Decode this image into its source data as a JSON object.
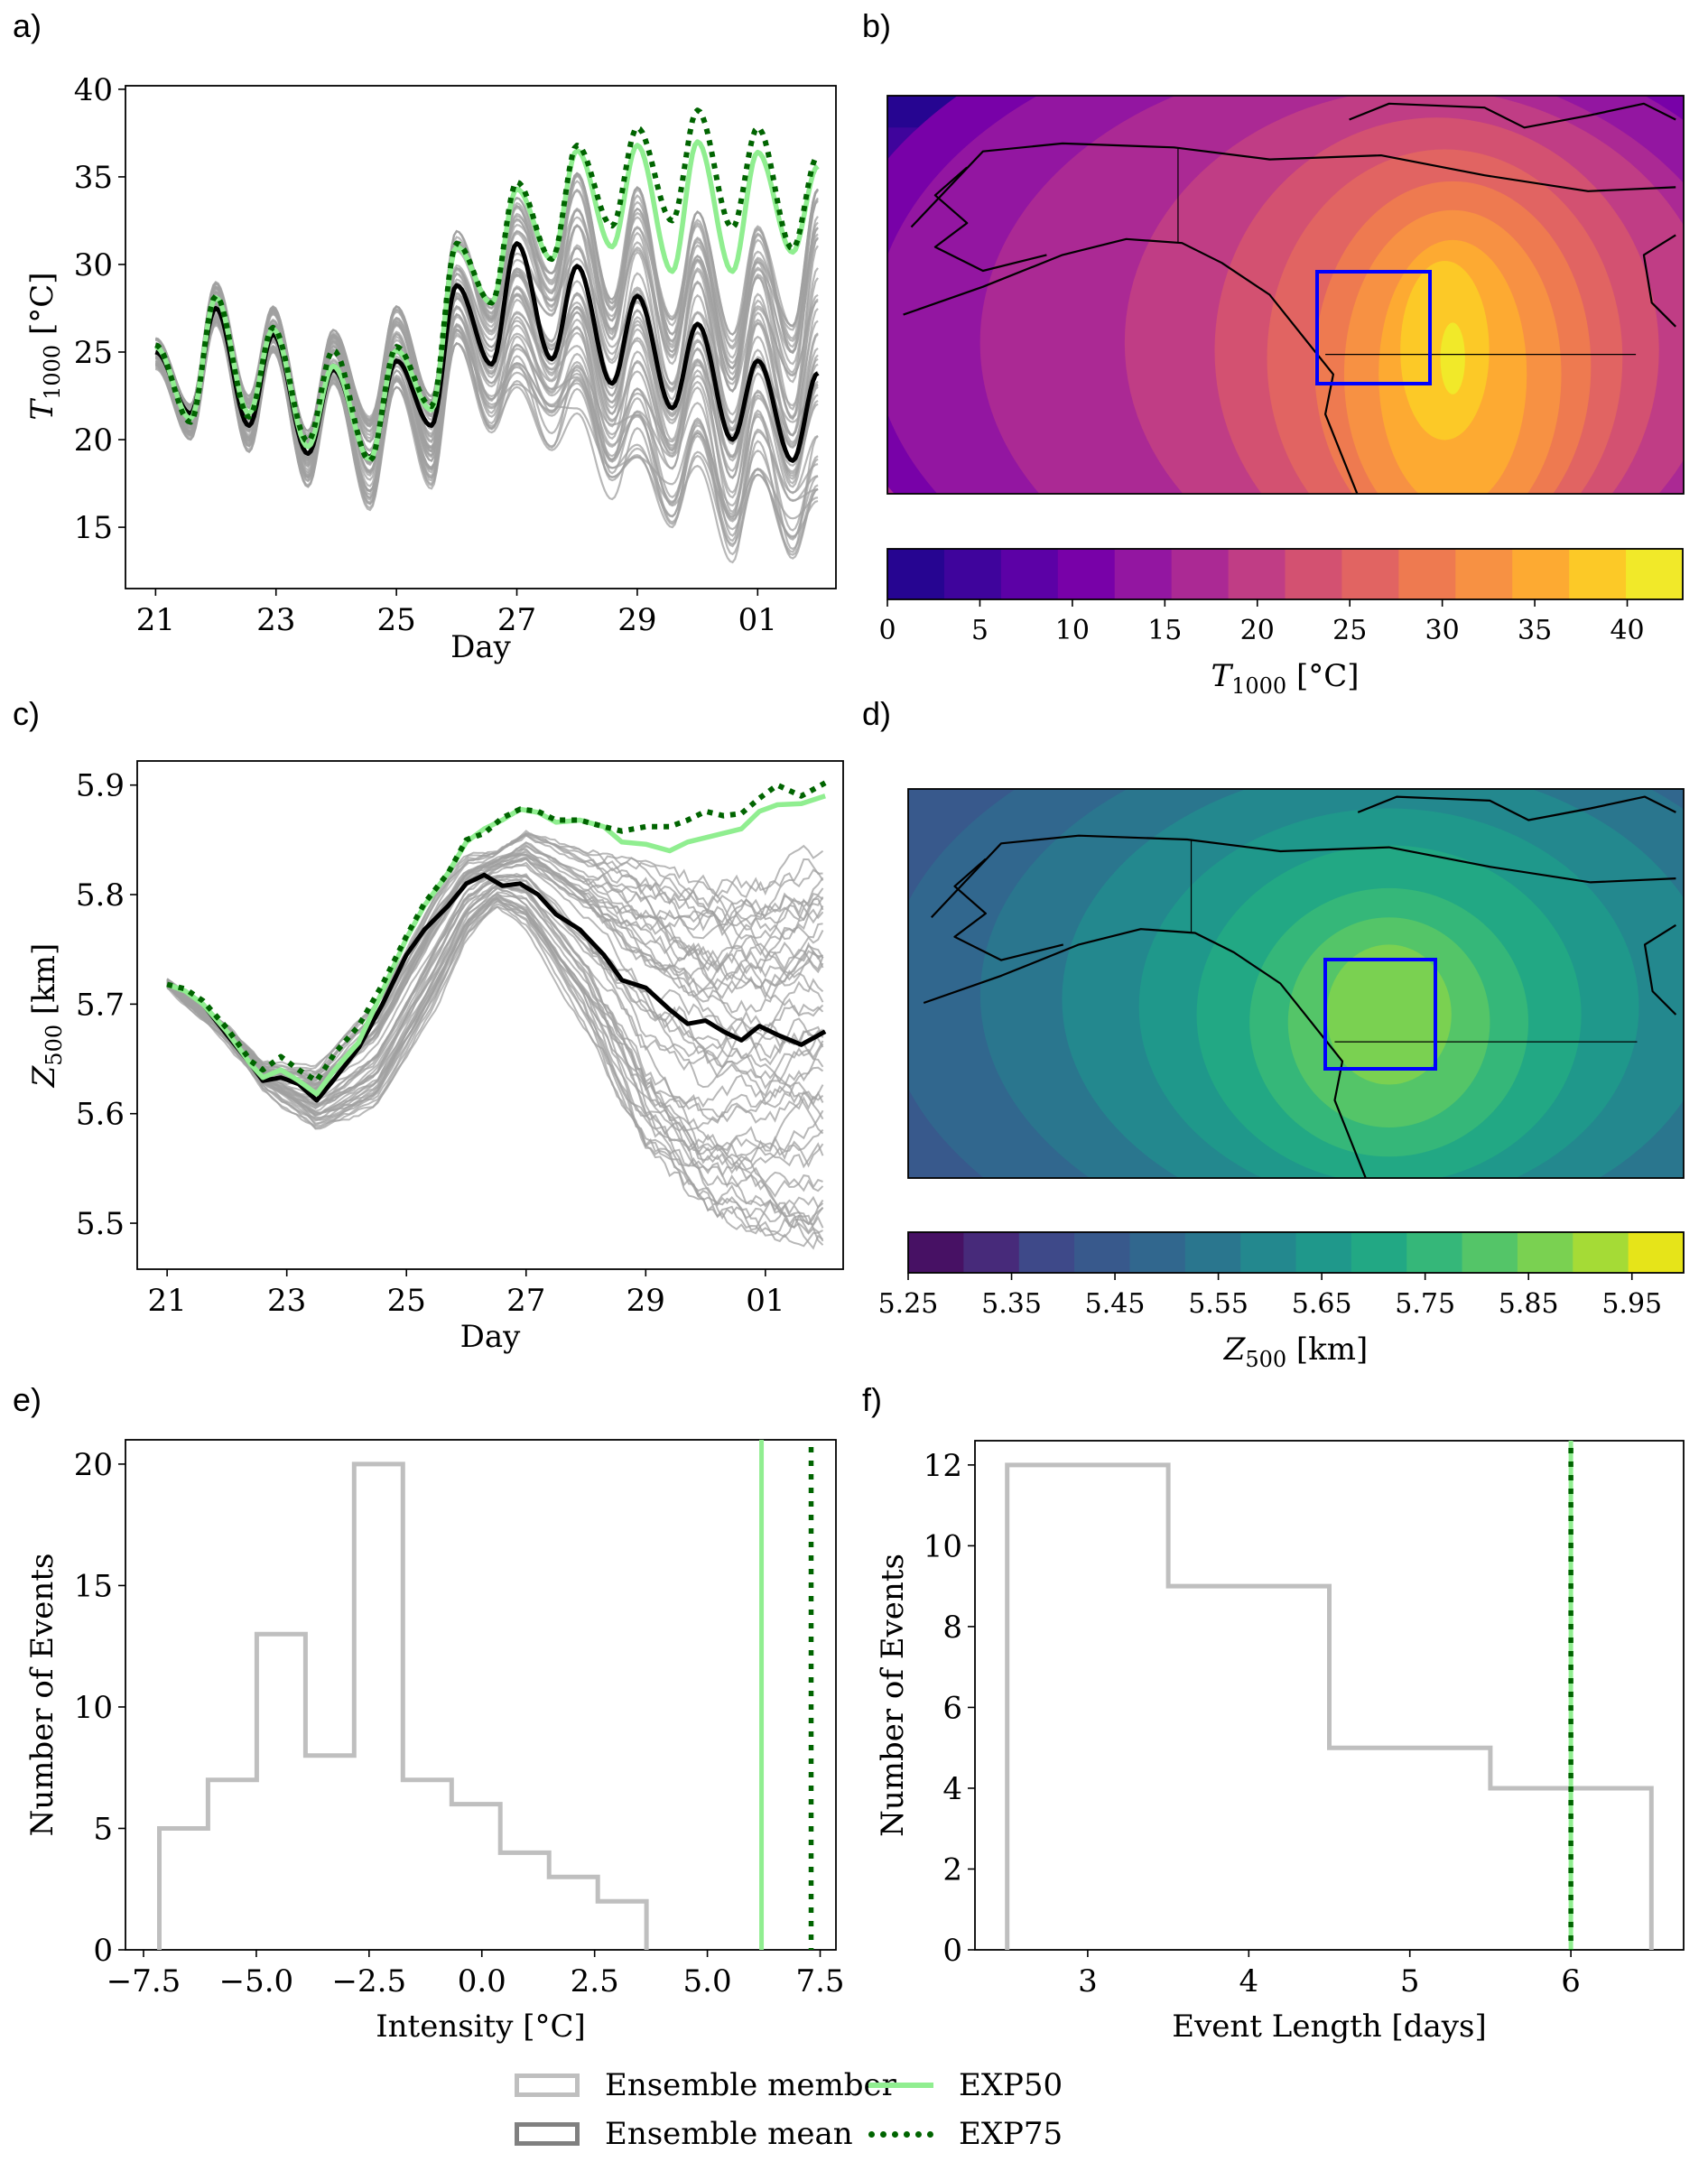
{
  "figure": {
    "panel_labels": [
      "a)",
      "b)",
      "c)",
      "d)",
      "e)",
      "f)"
    ],
    "legend": {
      "items": [
        {
          "label": "Ensemble member",
          "style": "box",
          "color": "#bfbfbf"
        },
        {
          "label": "Ensemble mean",
          "style": "box",
          "color": "#808080"
        },
        {
          "label": "EXP50",
          "style": "solid",
          "color": "#90ee90"
        },
        {
          "label": "EXP75",
          "style": "dotted",
          "color": "#006400"
        }
      ]
    },
    "colors": {
      "ensemble_member": "#a0a0a0",
      "ensemble_mean": "#000000",
      "exp50": "#90ee90",
      "exp75": "#006400",
      "hist_member": "#bfbfbf",
      "region_box": "#0000ff"
    }
  },
  "chart_data": [
    {
      "id": "a",
      "type": "line",
      "title": "",
      "xlabel": "Day",
      "ylabel": "T1000 [°C]",
      "ylabel_main": "T",
      "ylabel_sub": "1000",
      "ylabel_unit": " [°C]",
      "x_ticks": [
        21,
        23,
        25,
        27,
        29,
        31
      ],
      "x_tick_labels": [
        "21",
        "23",
        "25",
        "27",
        "29",
        "01"
      ],
      "xlim": [
        20.5,
        32.3
      ],
      "y_ticks": [
        15,
        20,
        25,
        30,
        35,
        40
      ],
      "y_tick_labels": [
        "15",
        "20",
        "25",
        "30",
        "35",
        "40"
      ],
      "ylim": [
        11.5,
        40.2
      ],
      "diurnal_peak_days": [
        21.0,
        22.0,
        22.95,
        23.95,
        25.0,
        26.0,
        27.0,
        28.0,
        29.0,
        30.0,
        31.0,
        32.0
      ],
      "series": [
        {
          "name": "Ensemble mean",
          "peaks": [
            25.0,
            27.5,
            26.0,
            24.0,
            24.5,
            28.8,
            31.2,
            29.9,
            28.2,
            26.6,
            24.5,
            23.8
          ],
          "troughs": [
            21.5,
            20.8,
            19.2,
            19.0,
            20.8,
            24.3,
            24.6,
            23.2,
            21.8,
            20.0,
            18.8
          ]
        },
        {
          "name": "EXP50",
          "peaks": [
            25.3,
            28.1,
            26.3,
            24.2,
            25.1,
            31.0,
            34.3,
            36.5,
            36.8,
            37.0,
            36.4,
            35.6
          ],
          "troughs": [
            21.2,
            21.5,
            19.6,
            18.9,
            21.7,
            27.8,
            30.3,
            31.0,
            29.6,
            29.6,
            30.7
          ]
        },
        {
          "name": "EXP75",
          "peaks": [
            25.4,
            28.2,
            26.4,
            25.1,
            25.3,
            31.2,
            34.7,
            36.8,
            37.8,
            38.8,
            37.8,
            36.2
          ],
          "troughs": [
            21.0,
            21.3,
            19.9,
            18.8,
            21.9,
            27.8,
            30.3,
            32.2,
            32.5,
            32.1,
            30.9
          ]
        }
      ],
      "ensemble_spread": {
        "n_members": 50,
        "min_peaks": [
          24.0,
          26.5,
          25.0,
          23.2,
          23.0,
          25.5,
          23.0,
          21.5,
          19.0,
          18.5,
          18.0,
          16.5
        ],
        "max_peaks": [
          25.8,
          29.0,
          27.6,
          26.3,
          27.6,
          31.9,
          33.8,
          35.2,
          34.4,
          33.0,
          32.3,
          34.3
        ],
        "min_troughs": [
          20.0,
          19.3,
          17.3,
          15.8,
          17.2,
          20.3,
          19.4,
          16.6,
          15.0,
          13.0,
          13.0
        ],
        "max_troughs": [
          22.0,
          22.5,
          20.5,
          21.3,
          22.5,
          28.0,
          29.5,
          28.0,
          27.0,
          26.0,
          26.5
        ]
      }
    },
    {
      "id": "b",
      "type": "heatmap",
      "title": "",
      "colorbar_label_main": "T",
      "colorbar_label_sub": "1000",
      "colorbar_label_unit": " [°C]",
      "colorbar_ticks": [
        0,
        5,
        10,
        15,
        20,
        25,
        30,
        35,
        40
      ],
      "colorbar_range": [
        0,
        43
      ],
      "levels": 14,
      "colormap": [
        "#260591",
        "#3f049c",
        "#5c01a6",
        "#7801a8",
        "#9316a1",
        "#ab2994",
        "#c03d85",
        "#d35171",
        "#e16462",
        "#ee7a50",
        "#f79143",
        "#fdaa32",
        "#fcc927",
        "#f1e929"
      ],
      "region_box": "blue rectangle over British Columbia / Pacific Northwest",
      "field_description": "T1000 heat anomaly maximum (~40°C) centred over southern British Columbia / Pacific Northwest, decreasing outward to ~5°C over North Pacific and ~0-3°C in Arctic"
    },
    {
      "id": "c",
      "type": "line",
      "title": "",
      "xlabel": "Day",
      "ylabel_main": "Z",
      "ylabel_sub": "500",
      "ylabel_unit": " [km]",
      "x_ticks": [
        21,
        23,
        25,
        27,
        29,
        31
      ],
      "x_tick_labels": [
        "21",
        "23",
        "25",
        "27",
        "29",
        "01"
      ],
      "xlim": [
        20.5,
        32.3
      ],
      "y_ticks": [
        5.5,
        5.6,
        5.7,
        5.8,
        5.9
      ],
      "y_tick_labels": [
        "5.5",
        "5.6",
        "5.7",
        "5.8",
        "5.9"
      ],
      "ylim": [
        5.458,
        5.922
      ],
      "series": [
        {
          "name": "Ensemble mean",
          "x": [
            21.0,
            21.3,
            21.6,
            22.0,
            22.4,
            22.6,
            22.9,
            23.2,
            23.5,
            23.8,
            24.2,
            24.6,
            25.0,
            25.3,
            25.7,
            26.0,
            26.3,
            26.6,
            26.9,
            27.2,
            27.5,
            27.9,
            28.3,
            28.6,
            29.0,
            29.4,
            29.7,
            30.0,
            30.3,
            30.6,
            30.9,
            31.2,
            31.6,
            32.0
          ],
          "y": [
            5.718,
            5.712,
            5.7,
            5.672,
            5.645,
            5.63,
            5.633,
            5.627,
            5.612,
            5.632,
            5.66,
            5.7,
            5.745,
            5.768,
            5.79,
            5.81,
            5.818,
            5.808,
            5.81,
            5.8,
            5.782,
            5.768,
            5.745,
            5.722,
            5.715,
            5.695,
            5.682,
            5.685,
            5.675,
            5.667,
            5.68,
            5.672,
            5.663,
            5.675
          ]
        },
        {
          "name": "EXP50",
          "x": [
            21.0,
            21.3,
            21.6,
            22.0,
            22.4,
            22.6,
            22.9,
            23.2,
            23.5,
            23.8,
            24.2,
            24.6,
            25.0,
            25.3,
            25.7,
            26.0,
            26.3,
            26.6,
            26.9,
            27.2,
            27.5,
            27.9,
            28.3,
            28.6,
            29.0,
            29.4,
            29.7,
            30.0,
            30.3,
            30.6,
            30.9,
            31.2,
            31.6,
            32.0
          ],
          "y": [
            5.718,
            5.712,
            5.7,
            5.675,
            5.645,
            5.633,
            5.64,
            5.63,
            5.618,
            5.64,
            5.665,
            5.712,
            5.76,
            5.79,
            5.82,
            5.848,
            5.86,
            5.868,
            5.878,
            5.875,
            5.866,
            5.868,
            5.862,
            5.848,
            5.846,
            5.84,
            5.848,
            5.852,
            5.856,
            5.86,
            5.876,
            5.882,
            5.883,
            5.89
          ]
        },
        {
          "name": "EXP75",
          "x": [
            21.0,
            21.3,
            21.6,
            22.0,
            22.4,
            22.6,
            22.9,
            23.2,
            23.5,
            23.8,
            24.2,
            24.6,
            25.0,
            25.3,
            25.7,
            26.0,
            26.3,
            26.6,
            26.9,
            27.2,
            27.5,
            27.9,
            28.3,
            28.6,
            29.0,
            29.4,
            29.7,
            30.0,
            30.3,
            30.6,
            30.9,
            31.2,
            31.6,
            32.0
          ],
          "y": [
            5.718,
            5.714,
            5.703,
            5.678,
            5.648,
            5.64,
            5.652,
            5.64,
            5.63,
            5.655,
            5.68,
            5.718,
            5.762,
            5.792,
            5.82,
            5.85,
            5.856,
            5.87,
            5.878,
            5.876,
            5.868,
            5.868,
            5.862,
            5.858,
            5.862,
            5.862,
            5.868,
            5.876,
            5.872,
            5.874,
            5.888,
            5.9,
            5.89,
            5.902
          ]
        }
      ],
      "ensemble_spread": {
        "n_members": 50,
        "envelope_x": [
          21.0,
          22.0,
          22.6,
          23.5,
          24.5,
          25.5,
          26.0,
          26.5,
          27.0,
          28.0,
          29.0,
          30.0,
          31.0,
          32.0
        ],
        "envelope_min": [
          5.716,
          5.668,
          5.625,
          5.585,
          5.605,
          5.7,
          5.76,
          5.79,
          5.77,
          5.68,
          5.56,
          5.5,
          5.49,
          5.48
        ],
        "envelope_max": [
          5.722,
          5.68,
          5.645,
          5.64,
          5.7,
          5.8,
          5.835,
          5.84,
          5.86,
          5.84,
          5.83,
          5.82,
          5.82,
          5.848
        ]
      }
    },
    {
      "id": "d",
      "type": "heatmap",
      "title": "",
      "colorbar_label_main": "Z",
      "colorbar_label_sub": "500",
      "colorbar_label_unit": " [km]",
      "colorbar_ticks": [
        5.25,
        5.35,
        5.45,
        5.55,
        5.65,
        5.75,
        5.85,
        5.95
      ],
      "colorbar_tick_labels": [
        "5.25",
        "5.35",
        "5.45",
        "5.55",
        "5.65",
        "5.75",
        "5.85",
        "5.95"
      ],
      "colorbar_range": [
        5.25,
        6.0
      ],
      "levels": 14,
      "colormap": [
        "#471164",
        "#472a7a",
        "#3e4989",
        "#38598c",
        "#31678e",
        "#2a768e",
        "#23888e",
        "#1f988b",
        "#22a884",
        "#35b779",
        "#54c568",
        "#7ad151",
        "#a5db36",
        "#e6e419"
      ],
      "region_box": "blue rectangle over British Columbia / Pacific Northwest",
      "field_description": "Z500 ridge maximum (~5.85-5.9 km) centred over British Columbia, decreasing outward; lowest (~5.25 km) in far northwest corner"
    },
    {
      "id": "e",
      "type": "bar",
      "histtype": "step",
      "title": "",
      "xlabel": "Intensity [°C]",
      "ylabel": "Number of Events",
      "x_ticks": [
        -7.5,
        -5.0,
        -2.5,
        0.0,
        2.5,
        5.0,
        7.5
      ],
      "x_tick_labels": [
        "−7.5",
        "−5.0",
        "−2.5",
        "0.0",
        "2.5",
        "5.0",
        "7.5"
      ],
      "xlim": [
        -7.9,
        7.85
      ],
      "y_ticks": [
        0,
        5,
        10,
        15,
        20
      ],
      "y_tick_labels": [
        "0",
        "5",
        "10",
        "15",
        "20"
      ],
      "ylim": [
        0,
        21
      ],
      "bin_edges": [
        -7.15,
        -6.07,
        -4.99,
        -3.91,
        -2.83,
        -1.75,
        -0.67,
        0.41,
        1.49,
        2.57,
        3.65
      ],
      "counts": [
        5,
        7,
        13,
        8,
        20,
        7,
        6,
        4,
        3,
        2
      ],
      "vlines": [
        {
          "name": "EXP50",
          "x": 6.2
        },
        {
          "name": "EXP75",
          "x": 7.3
        }
      ]
    },
    {
      "id": "f",
      "type": "bar",
      "histtype": "step",
      "title": "",
      "xlabel": "Event Length [days]",
      "ylabel": "Number of Events",
      "x_ticks": [
        3,
        4,
        5,
        6
      ],
      "x_tick_labels": [
        "3",
        "4",
        "5",
        "6"
      ],
      "xlim": [
        2.3,
        6.7
      ],
      "y_ticks": [
        0,
        2,
        4,
        6,
        8,
        10,
        12
      ],
      "y_tick_labels": [
        "0",
        "2",
        "4",
        "6",
        "8",
        "10",
        "12"
      ],
      "ylim": [
        0,
        12.6
      ],
      "bin_edges": [
        2.5,
        3.5,
        4.5,
        5.5,
        6.5
      ],
      "counts": [
        12,
        9,
        5,
        4
      ],
      "vlines": [
        {
          "name": "EXP50",
          "x": 6.0
        },
        {
          "name": "EXP75",
          "x": 6.0
        }
      ]
    }
  ]
}
